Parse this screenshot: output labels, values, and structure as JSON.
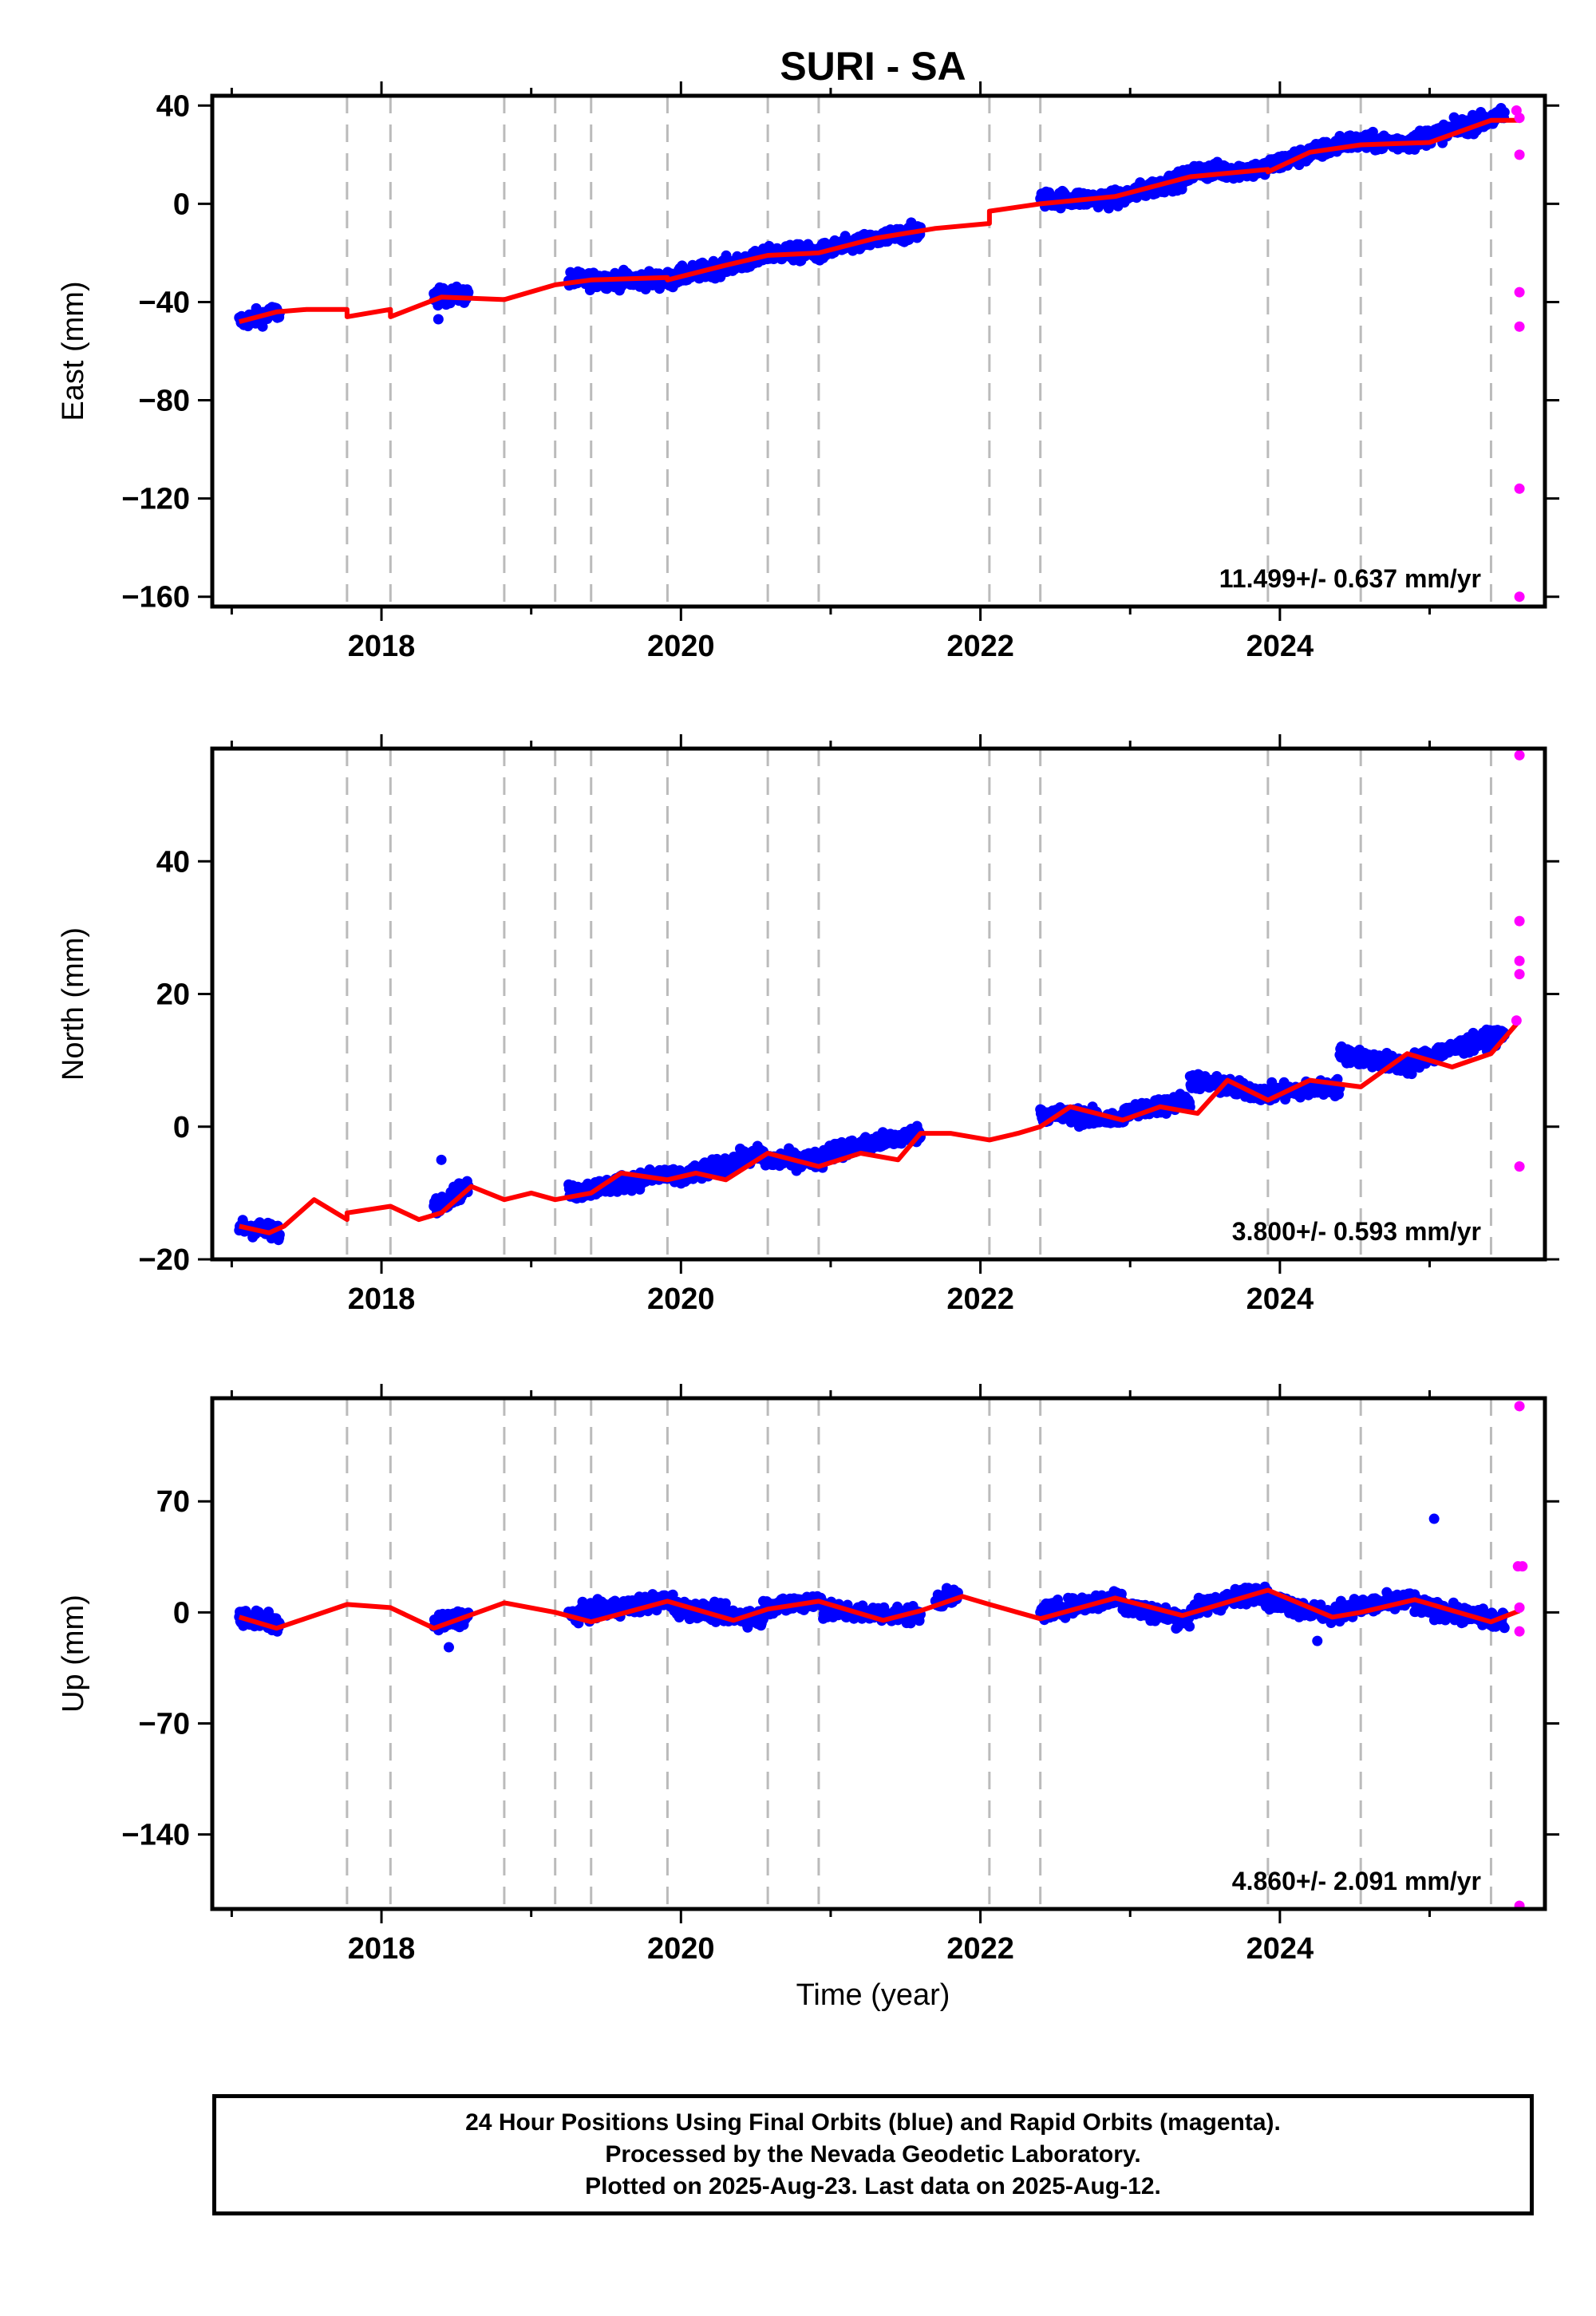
{
  "title": "SURI - SA",
  "colors": {
    "final": "#0000ff",
    "rapid": "#ff00ff",
    "model": "#ff0000",
    "breaks": "#bbbbbb",
    "frame": "#000000"
  },
  "xlabel": "Time (year)",
  "caption": {
    "line1": "24 Hour Positions Using Final Orbits (blue) and Rapid Orbits (magenta).",
    "line2": "Processed by the Nevada Geodetic Laboratory.",
    "line3": "Plotted on 2025-Aug-23. Last data on 2025-Aug-12."
  },
  "chart_data": {
    "type": "scatter",
    "xlim": [
      2016.87,
      2025.77
    ],
    "xticks": [
      2018,
      2020,
      2022,
      2024
    ],
    "break_years": [
      2017.77,
      2018.06,
      2018.82,
      2019.16,
      2019.4,
      2019.91,
      2020.58,
      2020.92,
      2022.06,
      2022.4,
      2023.92,
      2024.54,
      2025.41
    ],
    "panels": [
      {
        "ylabel": "East (mm)",
        "ylim": [
          -164,
          44
        ],
        "yticks": [
          40,
          0,
          -40,
          -80,
          -120,
          -160
        ],
        "ytick_labels": [
          "40",
          "0",
          "−40",
          "−80",
          "−120",
          "−160"
        ],
        "rate": "11.499+/- 0.637 mm/yr",
        "final_segments": [
          {
            "x": [
              2017.05,
              2017.32
            ],
            "y": [
              -48,
              -44
            ]
          },
          {
            "x": [
              2018.35,
              2018.58
            ],
            "y": [
              -38,
              -37
            ]
          },
          {
            "x": [
              2019.25,
              2019.95
            ],
            "y": [
              -31,
              -31
            ]
          },
          {
            "x": [
              2019.95,
              2020.55
            ],
            "y": [
              -30,
              -22
            ]
          },
          {
            "x": [
              2020.55,
              2020.95
            ],
            "y": [
              -20,
              -20
            ]
          },
          {
            "x": [
              2020.95,
              2021.6
            ],
            "y": [
              -19,
              -11
            ]
          },
          {
            "x": [
              2022.4,
              2022.95
            ],
            "y": [
              2,
              2
            ]
          },
          {
            "x": [
              2022.95,
              2023.4
            ],
            "y": [
              3,
              11
            ]
          },
          {
            "x": [
              2023.4,
              2023.9
            ],
            "y": [
              13,
              14
            ]
          },
          {
            "x": [
              2023.9,
              2024.4
            ],
            "y": [
              15,
              24
            ]
          },
          {
            "x": [
              2024.4,
              2024.9
            ],
            "y": [
              25,
              25
            ]
          },
          {
            "x": [
              2024.9,
              2025.5
            ],
            "y": [
              26,
              36
            ]
          }
        ],
        "final_outliers": [
          {
            "x": 2018.38,
            "y": -47
          }
        ],
        "rapid_points": [
          {
            "x": 2025.58,
            "y": 38
          },
          {
            "x": 2025.6,
            "y": 35
          },
          {
            "x": 2025.6,
            "y": 20
          },
          {
            "x": 2025.6,
            "y": -36
          },
          {
            "x": 2025.6,
            "y": -50
          },
          {
            "x": 2025.6,
            "y": -116
          },
          {
            "x": 2025.6,
            "y": -160
          }
        ],
        "model_x": [
          2017.05,
          2017.3,
          2017.5,
          2017.77,
          2017.77,
          2018.06,
          2018.06,
          2018.4,
          2018.82,
          2018.82,
          2019.16,
          2019.16,
          2019.4,
          2019.4,
          2019.91,
          2019.91,
          2020.3,
          2020.58,
          2020.58,
          2020.92,
          2020.92,
          2021.3,
          2021.7,
          2022.06,
          2022.06,
          2022.4,
          2022.4,
          2022.9,
          2023.4,
          2023.92,
          2023.92,
          2024.2,
          2024.54,
          2024.54,
          2025.0,
          2025.41,
          2025.41,
          2025.6
        ],
        "model_y": [
          -48,
          -44,
          -43,
          -43,
          -46,
          -43,
          -46,
          -38,
          -39,
          -39,
          -33,
          -33,
          -31,
          -31,
          -30,
          -31,
          -25,
          -21,
          -21,
          -20,
          -20,
          -14,
          -10,
          -8,
          -3,
          0,
          0,
          3,
          11,
          14,
          13,
          21,
          24,
          24,
          25,
          34,
          34,
          34
        ]
      },
      {
        "ylabel": "North (mm)",
        "ylim": [
          -20,
          57
        ],
        "yticks": [
          40,
          20,
          0,
          -20
        ],
        "ytick_labels": [
          "40",
          "20",
          "0",
          "−20"
        ],
        "rate": "3.800+/- 0.593 mm/yr",
        "final_segments": [
          {
            "x": [
              2017.05,
              2017.32
            ],
            "y": [
              -15,
              -16
            ]
          },
          {
            "x": [
              2018.35,
              2018.58
            ],
            "y": [
              -12,
              -9
            ]
          },
          {
            "x": [
              2019.25,
              2019.95
            ],
            "y": [
              -10,
              -7
            ]
          },
          {
            "x": [
              2019.95,
              2020.55
            ],
            "y": [
              -8,
              -4
            ]
          },
          {
            "x": [
              2020.55,
              2020.95
            ],
            "y": [
              -5,
              -5
            ]
          },
          {
            "x": [
              2020.95,
              2021.6
            ],
            "y": [
              -4,
              -1
            ]
          },
          {
            "x": [
              2022.4,
              2022.95
            ],
            "y": [
              2,
              1
            ]
          },
          {
            "x": [
              2022.95,
              2023.4
            ],
            "y": [
              2,
              4
            ]
          },
          {
            "x": [
              2023.4,
              2023.9
            ],
            "y": [
              7,
              5
            ]
          },
          {
            "x": [
              2023.9,
              2024.4
            ],
            "y": [
              5,
              6
            ]
          },
          {
            "x": [
              2024.4,
              2024.9
            ],
            "y": [
              11,
              9
            ]
          },
          {
            "x": [
              2024.9,
              2025.5
            ],
            "y": [
              10,
              14
            ]
          }
        ],
        "final_outliers": [
          {
            "x": 2018.4,
            "y": -5
          }
        ],
        "rapid_points": [
          {
            "x": 2025.6,
            "y": 56
          },
          {
            "x": 2025.6,
            "y": 31
          },
          {
            "x": 2025.6,
            "y": 25
          },
          {
            "x": 2025.6,
            "y": 23
          },
          {
            "x": 2025.58,
            "y": 16
          },
          {
            "x": 2025.6,
            "y": -6
          }
        ],
        "model_x": [
          2017.05,
          2017.25,
          2017.35,
          2017.55,
          2017.77,
          2017.77,
          2018.06,
          2018.06,
          2018.25,
          2018.4,
          2018.6,
          2018.82,
          2018.82,
          2019.0,
          2019.16,
          2019.16,
          2019.4,
          2019.4,
          2019.6,
          2019.91,
          2019.91,
          2020.1,
          2020.3,
          2020.58,
          2020.58,
          2020.92,
          2020.92,
          2021.2,
          2021.45,
          2021.6,
          2021.8,
          2022.06,
          2022.06,
          2022.25,
          2022.4,
          2022.4,
          2022.6,
          2022.95,
          2023.2,
          2023.45,
          2023.65,
          2023.92,
          2023.92,
          2024.2,
          2024.54,
          2024.54,
          2024.85,
          2025.15,
          2025.41,
          2025.41,
          2025.6
        ],
        "model_y": [
          -15,
          -16,
          -15,
          -11,
          -14,
          -13,
          -12,
          -12,
          -14,
          -13,
          -9,
          -11,
          -11,
          -10,
          -11,
          -11,
          -10,
          -10,
          -7,
          -8,
          -8,
          -7,
          -8,
          -4,
          -4,
          -6,
          -6,
          -4,
          -5,
          -1,
          -1,
          -2,
          -2,
          -1,
          0,
          0,
          3,
          1,
          3,
          2,
          7,
          4,
          4,
          7,
          6,
          6,
          11,
          9,
          11,
          11,
          16
        ]
      },
      {
        "ylabel": "Up (mm)",
        "ylim": [
          -187,
          135
        ],
        "yticks": [
          70,
          0,
          -70,
          -140
        ],
        "ytick_labels": [
          "70",
          "0",
          "−70",
          "−140"
        ],
        "rate": "4.860+/- 2.091 mm/yr",
        "final_segments": [
          {
            "x": [
              2017.05,
              2017.32
            ],
            "y": [
              -3,
              -7
            ]
          },
          {
            "x": [
              2018.35,
              2018.58
            ],
            "y": [
              -8,
              -2
            ]
          },
          {
            "x": [
              2019.25,
              2019.95
            ],
            "y": [
              -2,
              8
            ]
          },
          {
            "x": [
              2019.95,
              2020.55
            ],
            "y": [
              3,
              -4
            ]
          },
          {
            "x": [
              2020.55,
              2020.95
            ],
            "y": [
              3,
              8
            ]
          },
          {
            "x": [
              2020.95,
              2021.6
            ],
            "y": [
              1,
              -2
            ]
          },
          {
            "x": [
              2021.7,
              2021.85
            ],
            "y": [
              8,
              10
            ]
          },
          {
            "x": [
              2022.4,
              2022.95
            ],
            "y": [
              0,
              10
            ]
          },
          {
            "x": [
              2022.95,
              2023.4
            ],
            "y": [
              4,
              -5
            ]
          },
          {
            "x": [
              2023.4,
              2023.9
            ],
            "y": [
              2,
              14
            ]
          },
          {
            "x": [
              2023.9,
              2024.4
            ],
            "y": [
              8,
              -3
            ]
          },
          {
            "x": [
              2024.4,
              2024.9
            ],
            "y": [
              2,
              8
            ]
          },
          {
            "x": [
              2024.9,
              2025.5
            ],
            "y": [
              4,
              -6
            ]
          }
        ],
        "final_outliers": [
          {
            "x": 2025.03,
            "y": 59
          },
          {
            "x": 2018.45,
            "y": -22
          },
          {
            "x": 2024.25,
            "y": -18
          }
        ],
        "rapid_points": [
          {
            "x": 2025.6,
            "y": 130
          },
          {
            "x": 2025.59,
            "y": 29
          },
          {
            "x": 2025.62,
            "y": 29
          },
          {
            "x": 2025.6,
            "y": 3
          },
          {
            "x": 2025.6,
            "y": -12
          },
          {
            "x": 2025.6,
            "y": -185
          }
        ],
        "model_x": [
          2017.05,
          2017.3,
          2017.77,
          2017.77,
          2018.06,
          2018.06,
          2018.35,
          2018.82,
          2018.82,
          2019.16,
          2019.16,
          2019.4,
          2019.4,
          2019.91,
          2019.91,
          2020.35,
          2020.58,
          2020.58,
          2020.92,
          2020.92,
          2021.35,
          2021.6,
          2021.88,
          2022.06,
          2022.06,
          2022.4,
          2022.4,
          2022.9,
          2023.35,
          2023.92,
          2023.92,
          2024.35,
          2024.54,
          2024.54,
          2024.9,
          2025.41,
          2025.41,
          2025.6
        ],
        "model_y": [
          -3,
          -10,
          5,
          5,
          3,
          3,
          -10,
          6,
          6,
          0,
          0,
          -6,
          -6,
          7,
          7,
          -5,
          2,
          2,
          7,
          7,
          -5,
          1,
          10,
          5,
          5,
          -4,
          -4,
          9,
          -2,
          14,
          14,
          -3,
          0,
          0,
          8,
          -6,
          -6,
          1
        ]
      }
    ]
  }
}
